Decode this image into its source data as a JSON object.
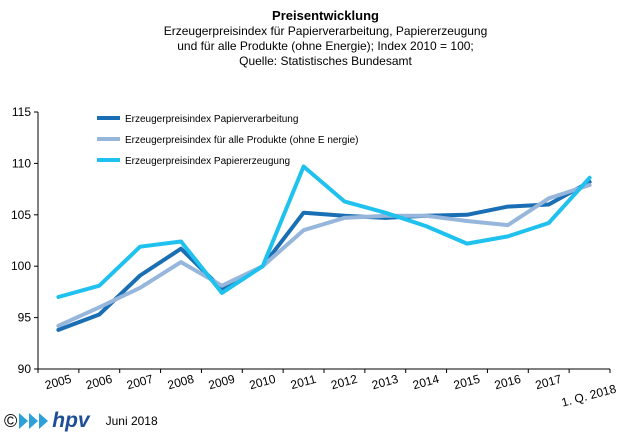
{
  "chart_data": {
    "type": "line",
    "title": "Preisentwicklung",
    "subtitle_lines": [
      "Erzeugerpreisindex  für Papierverarbeitung,  Papiererzeugung",
      "und für alle Produkte (ohne Energie); Index 2010 = 100;",
      "Quelle: Statistisches Bundesamt"
    ],
    "categories": [
      "2005",
      "2006",
      "2007",
      "2008",
      "2009",
      "2010",
      "2011",
      "2012",
      "2013",
      "2014",
      "2015",
      "2016",
      "2017",
      "1. Q. 2018"
    ],
    "ylim": [
      90,
      115
    ],
    "yticks": [
      "90",
      "95",
      "100",
      "105",
      "110",
      "115"
    ],
    "grid": false,
    "legend_position": "top-left",
    "series": [
      {
        "name": "Erzeugerpreisindex Papierverarbeitung",
        "color": "#1a6eb4",
        "values": [
          93.8,
          95.3,
          99.1,
          101.7,
          97.8,
          100.0,
          105.2,
          104.9,
          104.7,
          104.9,
          105.0,
          105.8,
          106.0,
          108.2
        ]
      },
      {
        "name": "Erzeugerpreisindex für alle Produkte (ohne E nergie)",
        "color": "#97b6dc",
        "values": [
          94.2,
          96.0,
          97.9,
          100.4,
          98.1,
          100.0,
          103.5,
          104.7,
          104.9,
          104.9,
          104.4,
          104.0,
          106.6,
          107.9
        ]
      },
      {
        "name": "Erzeugerpreisindex Papiererzeugung",
        "color": "#1fc1ee",
        "values": [
          97.0,
          98.1,
          101.9,
          102.4,
          97.4,
          100.0,
          109.7,
          106.3,
          105.2,
          103.9,
          102.2,
          102.9,
          104.2,
          108.6
        ]
      }
    ]
  },
  "footer": {
    "copyright": "©",
    "brand": "hpv",
    "date": "Juni 2018"
  }
}
